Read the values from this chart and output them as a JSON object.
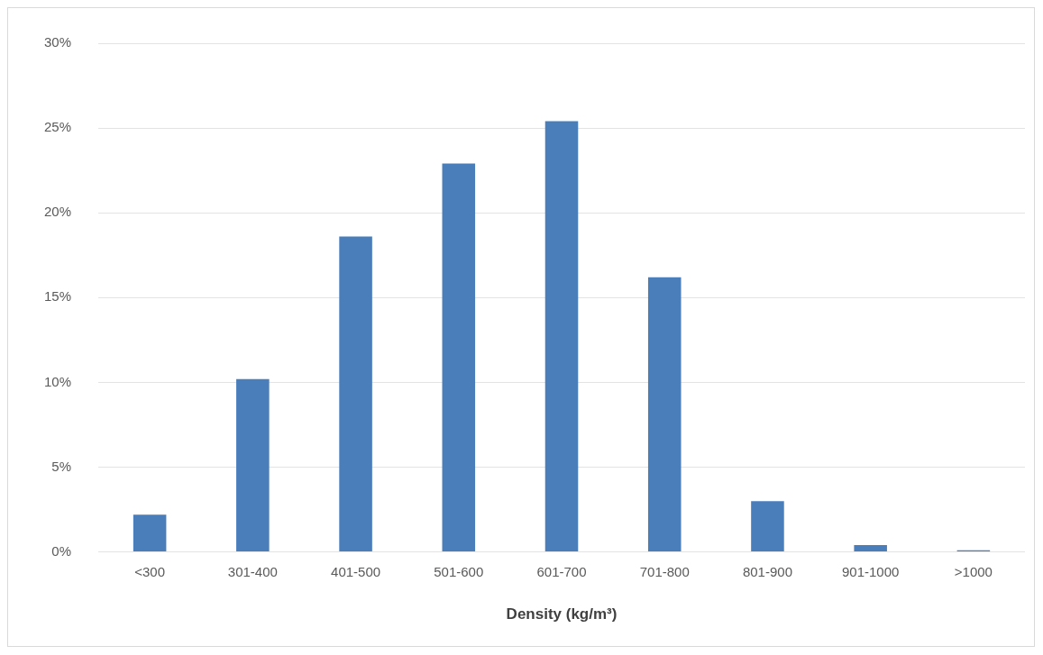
{
  "chart_data": {
    "type": "bar",
    "xlabel": "Density (kg/m³)",
    "categories": [
      "<300",
      "301-400",
      "401-500",
      "501-600",
      "601-700",
      "701-800",
      "801-900",
      "901-1000",
      ">1000"
    ],
    "values": [
      2.2,
      10.2,
      18.6,
      22.9,
      25.4,
      16.2,
      3.0,
      0.4,
      0.1
    ],
    "color": "#4a7ebb",
    "ylim": [
      0,
      30
    ],
    "yticks": [
      {
        "value": 0,
        "label": "0%"
      },
      {
        "value": 5,
        "label": "5%"
      },
      {
        "value": 10,
        "label": "10%"
      },
      {
        "value": 15,
        "label": "15%"
      },
      {
        "value": 20,
        "label": "20%"
      },
      {
        "value": 25,
        "label": "25%"
      },
      {
        "value": 30,
        "label": "30%"
      }
    ],
    "grid": "y",
    "legend": false
  }
}
